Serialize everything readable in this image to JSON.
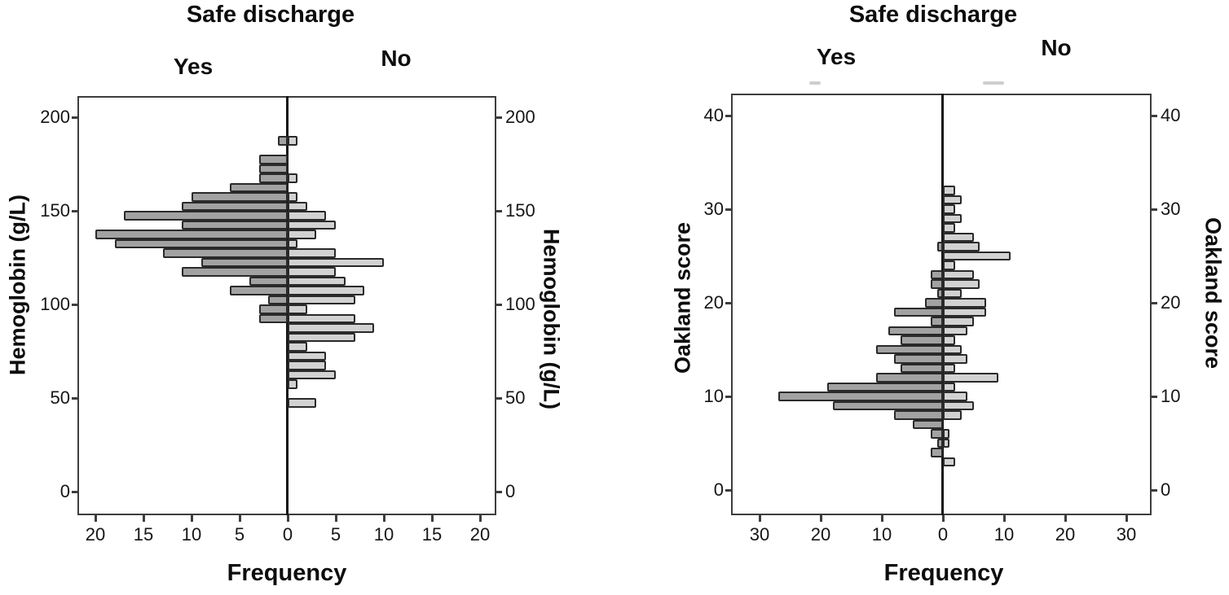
{
  "chart_data": [
    {
      "type": "bar",
      "variant": "population-pyramid-histogram",
      "title": "Safe discharge",
      "left_group_label": "Yes",
      "right_group_label": "No",
      "xlabel": "Frequency",
      "ylabel": "Hemoglobin (g/L)",
      "bin_width": 5,
      "x_ticks": [
        20,
        15,
        10,
        5,
        0,
        5,
        10,
        15,
        20
      ],
      "y_ticks": [
        0,
        50,
        100,
        150,
        200
      ],
      "ylim": [
        0,
        210
      ],
      "xlim_each_side": [
        0,
        22
      ],
      "legend_position": "top",
      "grid": false,
      "series": [
        {
          "name": "Yes",
          "side": "left",
          "color": "#a2a2a2"
        },
        {
          "name": "No",
          "side": "right",
          "color": "#d2d2d2"
        }
      ],
      "bins": [
        {
          "y": 185,
          "yes": 1,
          "no": 1
        },
        {
          "y": 180,
          "yes": 0,
          "no": 0
        },
        {
          "y": 175,
          "yes": 3,
          "no": 0
        },
        {
          "y": 170,
          "yes": 3,
          "no": 0
        },
        {
          "y": 165,
          "yes": 3,
          "no": 1
        },
        {
          "y": 160,
          "yes": 6,
          "no": 0
        },
        {
          "y": 155,
          "yes": 10,
          "no": 1
        },
        {
          "y": 150,
          "yes": 11,
          "no": 2
        },
        {
          "y": 145,
          "yes": 17,
          "no": 4
        },
        {
          "y": 140,
          "yes": 11,
          "no": 5
        },
        {
          "y": 135,
          "yes": 20,
          "no": 3
        },
        {
          "y": 130,
          "yes": 18,
          "no": 1
        },
        {
          "y": 125,
          "yes": 13,
          "no": 5
        },
        {
          "y": 120,
          "yes": 9,
          "no": 10
        },
        {
          "y": 115,
          "yes": 11,
          "no": 5
        },
        {
          "y": 110,
          "yes": 4,
          "no": 6
        },
        {
          "y": 105,
          "yes": 6,
          "no": 8
        },
        {
          "y": 100,
          "yes": 2,
          "no": 7
        },
        {
          "y": 95,
          "yes": 3,
          "no": 2
        },
        {
          "y": 90,
          "yes": 3,
          "no": 7
        },
        {
          "y": 85,
          "yes": 0,
          "no": 9
        },
        {
          "y": 80,
          "yes": 0,
          "no": 7
        },
        {
          "y": 75,
          "yes": 0,
          "no": 2
        },
        {
          "y": 70,
          "yes": 0,
          "no": 4
        },
        {
          "y": 65,
          "yes": 0,
          "no": 4
        },
        {
          "y": 60,
          "yes": 0,
          "no": 5
        },
        {
          "y": 55,
          "yes": 0,
          "no": 1
        },
        {
          "y": 50,
          "yes": 0,
          "no": 0
        },
        {
          "y": 45,
          "yes": 0,
          "no": 3
        },
        {
          "y": 40,
          "yes": 0,
          "no": 0
        }
      ],
      "colors": {
        "yes_fill": "#a2a2a2",
        "no_fill": "#d2d2d2",
        "bar_border": "#2a2a2a",
        "axis": "#3d3d3d",
        "center_line": "#151515"
      }
    },
    {
      "type": "bar",
      "variant": "population-pyramid-histogram",
      "title": "Safe discharge",
      "left_group_label": "Yes",
      "right_group_label": "No",
      "xlabel": "Frequency",
      "ylabel": "Oakland score",
      "bin_width": 1,
      "x_ticks": [
        30,
        20,
        10,
        0,
        10,
        20,
        30
      ],
      "y_ticks": [
        0,
        10,
        20,
        30,
        40
      ],
      "ylim": [
        0,
        42
      ],
      "xlim_each_side": [
        0,
        34
      ],
      "legend_position": "top",
      "grid": false,
      "series": [
        {
          "name": "Yes",
          "side": "left",
          "color": "#a2a2a2"
        },
        {
          "name": "No",
          "side": "right",
          "color": "#d2d2d2"
        }
      ],
      "bins": [
        {
          "y": 32,
          "yes": 0,
          "no": 2
        },
        {
          "y": 31,
          "yes": 0,
          "no": 3
        },
        {
          "y": 30,
          "yes": 0,
          "no": 2
        },
        {
          "y": 29,
          "yes": 0,
          "no": 3
        },
        {
          "y": 28,
          "yes": 0,
          "no": 2
        },
        {
          "y": 27,
          "yes": 0,
          "no": 5
        },
        {
          "y": 26,
          "yes": 1,
          "no": 6
        },
        {
          "y": 25,
          "yes": 0,
          "no": 11
        },
        {
          "y": 24,
          "yes": 0,
          "no": 2
        },
        {
          "y": 23,
          "yes": 2,
          "no": 5
        },
        {
          "y": 22,
          "yes": 2,
          "no": 6
        },
        {
          "y": 21,
          "yes": 1,
          "no": 3
        },
        {
          "y": 20,
          "yes": 3,
          "no": 7
        },
        {
          "y": 19,
          "yes": 8,
          "no": 7
        },
        {
          "y": 18,
          "yes": 2,
          "no": 5
        },
        {
          "y": 17,
          "yes": 9,
          "no": 4
        },
        {
          "y": 16,
          "yes": 7,
          "no": 2
        },
        {
          "y": 15,
          "yes": 11,
          "no": 3
        },
        {
          "y": 14,
          "yes": 8,
          "no": 4
        },
        {
          "y": 13,
          "yes": 7,
          "no": 2
        },
        {
          "y": 12,
          "yes": 11,
          "no": 9
        },
        {
          "y": 11,
          "yes": 19,
          "no": 2
        },
        {
          "y": 10,
          "yes": 27,
          "no": 4
        },
        {
          "y": 9,
          "yes": 18,
          "no": 5
        },
        {
          "y": 8,
          "yes": 8,
          "no": 3
        },
        {
          "y": 7,
          "yes": 5,
          "no": 0
        },
        {
          "y": 6,
          "yes": 2,
          "no": 1
        },
        {
          "y": 5,
          "yes": 1,
          "no": 1
        },
        {
          "y": 4,
          "yes": 2,
          "no": 0
        },
        {
          "y": 3,
          "yes": 0,
          "no": 2
        }
      ],
      "colors": {
        "yes_fill": "#a2a2a2",
        "no_fill": "#d2d2d2",
        "bar_border": "#2a2a2a",
        "axis": "#3d3d3d",
        "center_line": "#151515"
      }
    }
  ]
}
